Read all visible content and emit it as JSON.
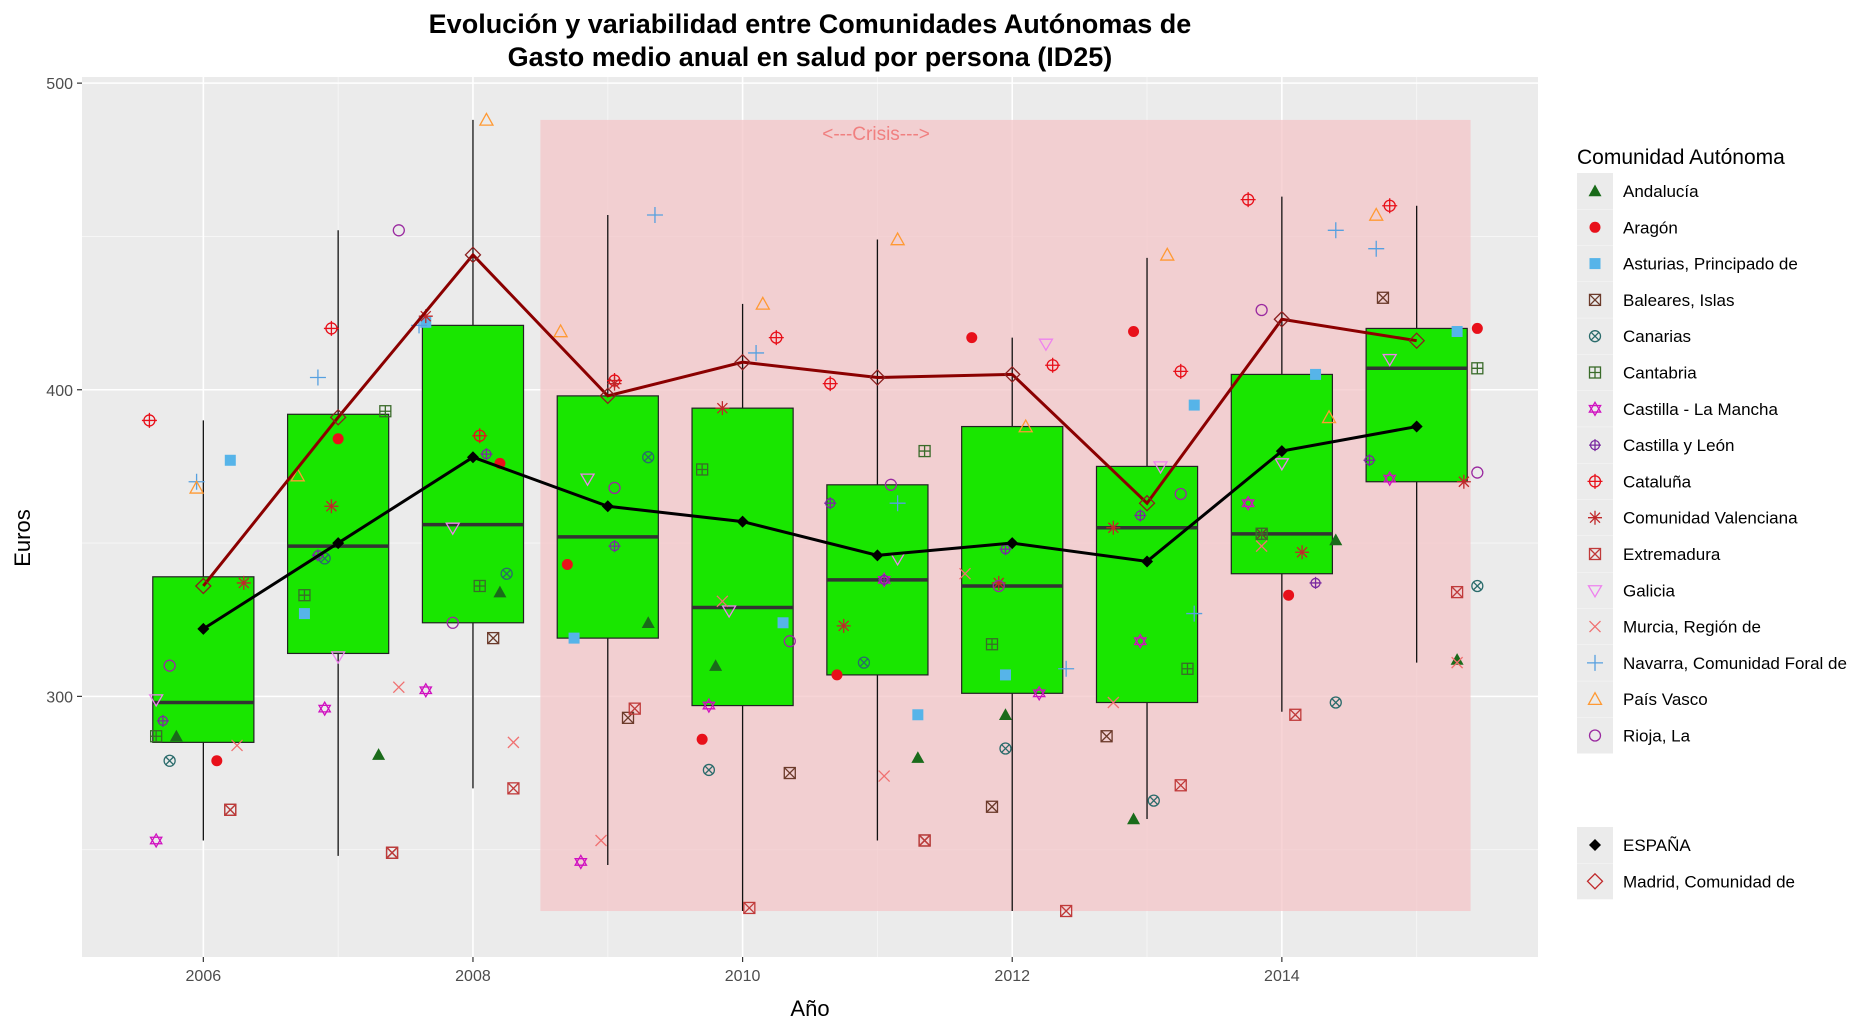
{
  "chart_data": {
    "type": "boxplot",
    "title_line1": "Evolución y variabilidad entre Comunidades Autónomas de",
    "title_line2": "Gasto medio anual en salud por persona (ID25)",
    "xlabel": "Año",
    "ylabel": "Euros",
    "annotation": "<---Crisis--->",
    "crisis_range": {
      "x_start": 2008.5,
      "x_end": 2015.4,
      "y_start": 230,
      "y_end": 488
    },
    "xlim": [
      2005.1,
      2015.9
    ],
    "ylim": [
      215,
      502
    ],
    "x_ticks": [
      2006,
      2008,
      2010,
      2012,
      2014
    ],
    "y_ticks": [
      300,
      400,
      500
    ],
    "legend_title": "Comunidad Autónoma",
    "colors": {
      "box_fill": "#19e600",
      "median_line": "#333333",
      "espana_line": "#000000",
      "madrid_line": "#8b0000",
      "crisis_fill": "#f4c6c8",
      "panel_bg": "#ebebeb",
      "grid": "#ffffff",
      "annotation": "#f08080"
    },
    "boxes": [
      {
        "year": 2006,
        "lower_whisker": 253,
        "q1": 285,
        "median": 298,
        "q3": 339,
        "upper_whisker": 390
      },
      {
        "year": 2007,
        "lower_whisker": 248,
        "q1": 314,
        "median": 349,
        "q3": 392,
        "upper_whisker": 452
      },
      {
        "year": 2008,
        "lower_whisker": 270,
        "q1": 324,
        "median": 356,
        "q3": 421,
        "upper_whisker": 488
      },
      {
        "year": 2009,
        "lower_whisker": 245,
        "q1": 319,
        "median": 352,
        "q3": 398,
        "upper_whisker": 457
      },
      {
        "year": 2010,
        "lower_whisker": 230,
        "q1": 297,
        "median": 329,
        "q3": 394,
        "upper_whisker": 428
      },
      {
        "year": 2011,
        "lower_whisker": 253,
        "q1": 307,
        "median": 338,
        "q3": 369,
        "upper_whisker": 449
      },
      {
        "year": 2012,
        "lower_whisker": 230,
        "q1": 301,
        "median": 336,
        "q3": 388,
        "upper_whisker": 417
      },
      {
        "year": 2013,
        "lower_whisker": 260,
        "q1": 298,
        "median": 355,
        "q3": 375,
        "upper_whisker": 443
      },
      {
        "year": 2014,
        "lower_whisker": 295,
        "q1": 340,
        "median": 353,
        "q3": 405,
        "upper_whisker": 463
      },
      {
        "year": 2015,
        "lower_whisker": 311,
        "q1": 370,
        "median": 407,
        "q3": 420,
        "upper_whisker": 460
      }
    ],
    "lines": [
      {
        "name": "ESPAÑA",
        "color": "#000000",
        "x": [
          2006,
          2007,
          2008,
          2009,
          2010,
          2011,
          2012,
          2013,
          2014,
          2015
        ],
        "y": [
          322,
          350,
          378,
          362,
          357,
          346,
          350,
          344,
          380,
          388
        ]
      },
      {
        "name": "Madrid, Comunidad de",
        "color": "#8b0000",
        "x": [
          2006,
          2007,
          2008,
          2009,
          2010,
          2011,
          2012,
          2013,
          2014,
          2015
        ],
        "y": [
          336,
          391,
          444,
          398,
          409,
          404,
          405,
          363,
          423,
          416
        ]
      }
    ],
    "series": [
      {
        "name": "Andalucía",
        "symbol": "triangle-filled",
        "color": "#1a6b1a",
        "points": [
          [
            2005.8,
            287
          ],
          [
            2007.3,
            281
          ],
          [
            2008.2,
            334
          ],
          [
            2009.3,
            324
          ],
          [
            2009.8,
            310
          ],
          [
            2011.3,
            280
          ],
          [
            2011.95,
            294
          ],
          [
            2012.9,
            260
          ],
          [
            2014.4,
            351
          ],
          [
            2015.3,
            312
          ]
        ]
      },
      {
        "name": "Aragón",
        "symbol": "circle-filled",
        "color": "#e8101a",
        "points": [
          [
            2006.1,
            279
          ],
          [
            2007.0,
            384
          ],
          [
            2008.2,
            376
          ],
          [
            2008.7,
            343
          ],
          [
            2009.7,
            286
          ],
          [
            2010.7,
            307
          ],
          [
            2011.7,
            417
          ],
          [
            2012.9,
            419
          ],
          [
            2014.05,
            333
          ],
          [
            2015.45,
            420
          ]
        ]
      },
      {
        "name": "Asturias, Principado de",
        "symbol": "square-filled",
        "color": "#56b4e9",
        "points": [
          [
            2006.2,
            377
          ],
          [
            2006.75,
            327
          ],
          [
            2007.65,
            422
          ],
          [
            2008.75,
            319
          ],
          [
            2010.3,
            324
          ],
          [
            2011.3,
            294
          ],
          [
            2011.95,
            307
          ],
          [
            2013.35,
            395
          ],
          [
            2014.25,
            405
          ],
          [
            2015.3,
            419
          ]
        ]
      },
      {
        "name": "Baleares, Islas",
        "symbol": "square-x",
        "color": "#6b3a2a",
        "points": [
          [
            2006.2,
            263
          ],
          [
            2007.4,
            249
          ],
          [
            2008.15,
            319
          ],
          [
            2009.15,
            293
          ],
          [
            2010.35,
            275
          ],
          [
            2011.35,
            253
          ],
          [
            2011.85,
            264
          ],
          [
            2012.7,
            287
          ],
          [
            2013.85,
            353
          ],
          [
            2014.75,
            430
          ]
        ]
      },
      {
        "name": "Canarias",
        "symbol": "circle-x",
        "color": "#2a6b6b",
        "points": [
          [
            2005.75,
            279
          ],
          [
            2006.9,
            345
          ],
          [
            2008.25,
            340
          ],
          [
            2009.3,
            378
          ],
          [
            2009.75,
            276
          ],
          [
            2010.9,
            311
          ],
          [
            2011.95,
            283
          ],
          [
            2013.05,
            266
          ],
          [
            2014.4,
            298
          ],
          [
            2015.45,
            336
          ]
        ]
      },
      {
        "name": "Cantabria",
        "symbol": "square-plus",
        "color": "#3a6b2a",
        "points": [
          [
            2005.65,
            287
          ],
          [
            2006.75,
            333
          ],
          [
            2007.35,
            393
          ],
          [
            2008.05,
            336
          ],
          [
            2009.7,
            374
          ],
          [
            2011.35,
            380
          ],
          [
            2011.85,
            317
          ],
          [
            2013.3,
            309
          ],
          [
            2013.85,
            353
          ],
          [
            2015.45,
            407
          ]
        ]
      },
      {
        "name": "Castilla - La Mancha",
        "symbol": "star-david",
        "color": "#d010c0",
        "points": [
          [
            2005.65,
            253
          ],
          [
            2006.9,
            296
          ],
          [
            2007.65,
            302
          ],
          [
            2008.8,
            246
          ],
          [
            2009.75,
            297
          ],
          [
            2011.05,
            338
          ],
          [
            2012.2,
            301
          ],
          [
            2012.95,
            318
          ],
          [
            2013.75,
            363
          ],
          [
            2014.8,
            371
          ]
        ]
      },
      {
        "name": "Castilla y León",
        "symbol": "circle-plus",
        "color": "#7a2aa0",
        "points": [
          [
            2005.7,
            292
          ],
          [
            2006.85,
            346
          ],
          [
            2008.1,
            379
          ],
          [
            2009.05,
            349
          ],
          [
            2010.65,
            363
          ],
          [
            2011.05,
            338
          ],
          [
            2011.95,
            348
          ],
          [
            2012.95,
            359
          ],
          [
            2014.25,
            337
          ],
          [
            2014.65,
            377
          ]
        ]
      },
      {
        "name": "Cataluña",
        "symbol": "circle-plus-thin",
        "color": "#e8101a",
        "points": [
          [
            2005.6,
            390
          ],
          [
            2006.95,
            420
          ],
          [
            2008.05,
            385
          ],
          [
            2009.05,
            403
          ],
          [
            2010.25,
            417
          ],
          [
            2010.65,
            402
          ],
          [
            2012.3,
            408
          ],
          [
            2013.25,
            406
          ],
          [
            2013.75,
            462
          ],
          [
            2014.8,
            460
          ]
        ]
      },
      {
        "name": "Comunidad Valenciana",
        "symbol": "asterisk",
        "color": "#c0282a",
        "points": [
          [
            2006.3,
            337
          ],
          [
            2006.95,
            362
          ],
          [
            2007.65,
            424
          ],
          [
            2009.05,
            402
          ],
          [
            2009.85,
            394
          ],
          [
            2010.75,
            323
          ],
          [
            2011.9,
            337
          ],
          [
            2012.75,
            355
          ],
          [
            2014.15,
            347
          ],
          [
            2015.35,
            370
          ]
        ]
      },
      {
        "name": "Extremadura",
        "symbol": "square-x-red",
        "color": "#c03a3a",
        "points": [
          [
            2006.2,
            263
          ],
          [
            2007.4,
            249
          ],
          [
            2008.3,
            270
          ],
          [
            2009.2,
            296
          ],
          [
            2010.05,
            231
          ],
          [
            2011.35,
            253
          ],
          [
            2012.4,
            230
          ],
          [
            2013.25,
            271
          ],
          [
            2014.1,
            294
          ],
          [
            2015.3,
            334
          ]
        ]
      },
      {
        "name": "Galicia",
        "symbol": "triangle-down",
        "color": "#ee82ee",
        "points": [
          [
            2005.65,
            299
          ],
          [
            2007.0,
            313
          ],
          [
            2007.85,
            355
          ],
          [
            2008.85,
            371
          ],
          [
            2009.9,
            328
          ],
          [
            2011.15,
            345
          ],
          [
            2012.25,
            415
          ],
          [
            2013.1,
            375
          ],
          [
            2014.0,
            376
          ],
          [
            2014.8,
            410
          ]
        ]
      },
      {
        "name": "Murcia, Región de",
        "symbol": "x",
        "color": "#f07070",
        "points": [
          [
            2006.25,
            284
          ],
          [
            2007.45,
            303
          ],
          [
            2008.3,
            285
          ],
          [
            2008.95,
            253
          ],
          [
            2009.85,
            331
          ],
          [
            2011.05,
            274
          ],
          [
            2011.65,
            340
          ],
          [
            2012.75,
            298
          ],
          [
            2013.85,
            349
          ],
          [
            2015.3,
            311
          ]
        ]
      },
      {
        "name": "Navarra, Comunidad Foral de",
        "symbol": "plus",
        "color": "#56a0e0",
        "points": [
          [
            2005.95,
            370
          ],
          [
            2006.85,
            404
          ],
          [
            2007.6,
            421
          ],
          [
            2009.35,
            457
          ],
          [
            2010.1,
            412
          ],
          [
            2011.15,
            363
          ],
          [
            2012.4,
            309
          ],
          [
            2013.35,
            327
          ],
          [
            2014.4,
            452
          ],
          [
            2014.7,
            446
          ]
        ]
      },
      {
        "name": "País Vasco",
        "symbol": "triangle-open",
        "color": "#ff9933",
        "points": [
          [
            2005.95,
            368
          ],
          [
            2006.7,
            372
          ],
          [
            2008.1,
            488
          ],
          [
            2008.65,
            419
          ],
          [
            2010.15,
            428
          ],
          [
            2011.15,
            449
          ],
          [
            2012.1,
            388
          ],
          [
            2013.15,
            444
          ],
          [
            2014.35,
            391
          ],
          [
            2014.7,
            457
          ]
        ]
      },
      {
        "name": "Rioja, La",
        "symbol": "circle-open",
        "color": "#9a2aa0",
        "points": [
          [
            2005.75,
            310
          ],
          [
            2007.45,
            452
          ],
          [
            2007.85,
            324
          ],
          [
            2009.05,
            368
          ],
          [
            2010.35,
            318
          ],
          [
            2011.1,
            369
          ],
          [
            2011.9,
            336
          ],
          [
            2013.25,
            366
          ],
          [
            2013.85,
            426
          ],
          [
            2015.45,
            373
          ]
        ]
      }
    ]
  },
  "legend": {
    "title": "Comunidad Autónoma",
    "items": [
      {
        "label": "Andalucía",
        "symbol": "triangle-filled",
        "color": "#1a6b1a"
      },
      {
        "label": "Aragón",
        "symbol": "circle-filled",
        "color": "#e8101a"
      },
      {
        "label": "Asturias, Principado de",
        "symbol": "square-filled",
        "color": "#56b4e9"
      },
      {
        "label": "Baleares, Islas",
        "symbol": "square-x",
        "color": "#6b3a2a"
      },
      {
        "label": "Canarias",
        "symbol": "circle-x",
        "color": "#2a6b6b"
      },
      {
        "label": "Cantabria",
        "symbol": "square-plus",
        "color": "#3a6b2a"
      },
      {
        "label": "Castilla - La Mancha",
        "symbol": "star-david",
        "color": "#d010c0"
      },
      {
        "label": "Castilla y León",
        "symbol": "circle-plus",
        "color": "#7a2aa0"
      },
      {
        "label": "Cataluña",
        "symbol": "circle-plus-thin",
        "color": "#e8101a"
      },
      {
        "label": "Comunidad Valenciana",
        "symbol": "asterisk",
        "color": "#c0282a"
      },
      {
        "label": "Extremadura",
        "symbol": "square-x-red",
        "color": "#c03a3a"
      },
      {
        "label": "Galicia",
        "symbol": "triangle-down",
        "color": "#ee82ee"
      },
      {
        "label": "Murcia, Región de",
        "symbol": "x",
        "color": "#f07070"
      },
      {
        "label": "Navarra, Comunidad Foral de",
        "symbol": "plus",
        "color": "#56a0e0"
      },
      {
        "label": "País Vasco",
        "symbol": "triangle-open",
        "color": "#ff9933"
      },
      {
        "label": "Rioja, La",
        "symbol": "circle-open",
        "color": "#9a2aa0"
      }
    ],
    "extra_items": [
      {
        "label": "ESPAÑA",
        "symbol": "diamond-filled",
        "color": "#000000"
      },
      {
        "label": "Madrid, Comunidad de",
        "symbol": "diamond-open",
        "color": "#c0282a"
      }
    ]
  }
}
